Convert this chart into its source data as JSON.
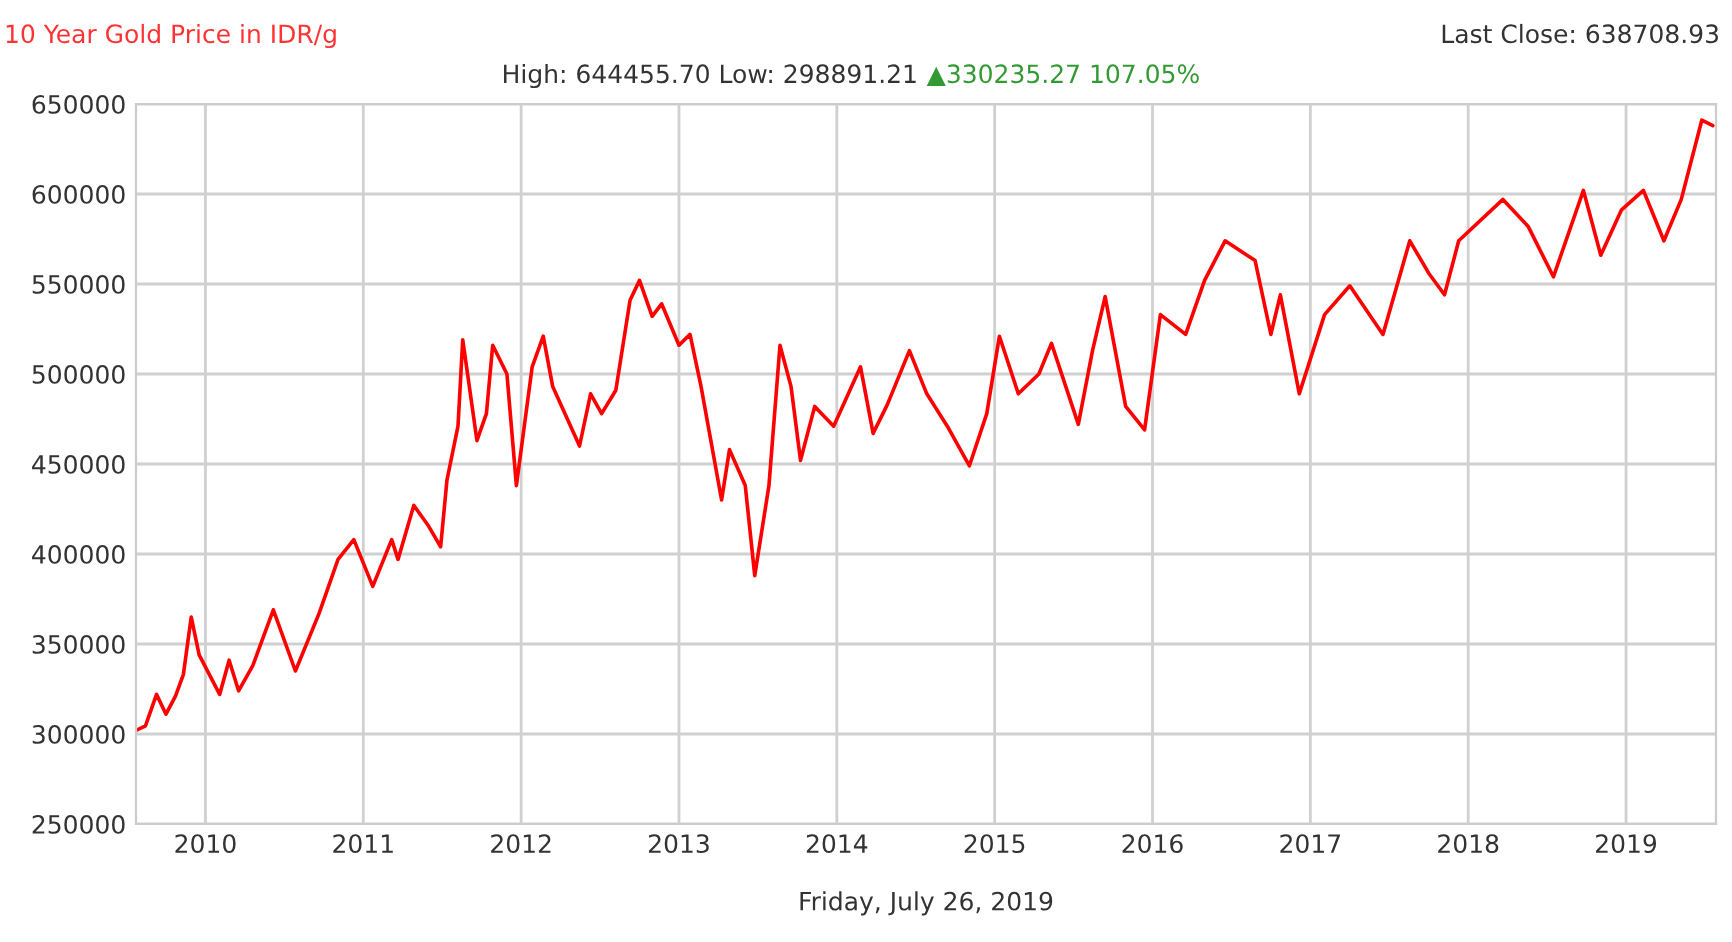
{
  "chart_data": {
    "type": "line",
    "title": "10 Year Gold Price in IDR/g",
    "subtitle": "High: 644455.70 Low: 298891.21",
    "annotations": [
      "▲330235.27 107.05%",
      "Last Close: 638708.93"
    ],
    "xlabel": "Friday, July 26, 2019",
    "xlim": [
      2009.56,
      2019.57
    ],
    "xticks": [
      {
        "value": 2010,
        "label": "2010"
      },
      {
        "value": 2011,
        "label": "2011"
      },
      {
        "value": 2012,
        "label": "2012"
      },
      {
        "value": 2013,
        "label": "2013"
      },
      {
        "value": 2014,
        "label": "2014"
      },
      {
        "value": 2015,
        "label": "2015"
      },
      {
        "value": 2016,
        "label": "2016"
      },
      {
        "value": 2017,
        "label": "2017"
      },
      {
        "value": 2018,
        "label": "2018"
      },
      {
        "value": 2019,
        "label": "2019"
      }
    ],
    "ylim": [
      250000,
      650000
    ],
    "yticks": [
      250000,
      300000,
      350000,
      400000,
      450000,
      500000,
      550000,
      600000,
      650000
    ],
    "grid": true,
    "legend": false,
    "series": [
      {
        "color": "#ff0000",
        "x": [
          2009.56,
          2009.62,
          2009.69,
          2009.75,
          2009.81,
          2009.86,
          2009.91,
          2009.96,
          2010.09,
          2010.15,
          2010.21,
          2010.3,
          2010.43,
          2010.57,
          2010.72,
          2010.84,
          2010.94,
          2011.06,
          2011.18,
          2011.22,
          2011.32,
          2011.41,
          2011.49,
          2011.53,
          2011.6,
          2011.63,
          2011.72,
          2011.78,
          2011.82,
          2011.91,
          2011.97,
          2012.07,
          2012.14,
          2012.2,
          2012.37,
          2012.44,
          2012.51,
          2012.6,
          2012.69,
          2012.75,
          2012.83,
          2012.89,
          2013.0,
          2013.07,
          2013.14,
          2013.27,
          2013.32,
          2013.42,
          2013.48,
          2013.57,
          2013.64,
          2013.71,
          2013.77,
          2013.86,
          2013.98,
          2014.15,
          2014.23,
          2014.32,
          2014.46,
          2014.57,
          2014.7,
          2014.84,
          2014.95,
          2015.03,
          2015.15,
          2015.28,
          2015.36,
          2015.53,
          2015.62,
          2015.7,
          2015.83,
          2015.95,
          2016.05,
          2016.21,
          2016.33,
          2016.46,
          2016.65,
          2016.75,
          2016.81,
          2016.93,
          2017.09,
          2017.25,
          2017.46,
          2017.63,
          2017.75,
          2017.85,
          2017.94,
          2018.22,
          2018.38,
          2018.54,
          2018.73,
          2018.84,
          2018.97,
          2019.11,
          2019.24,
          2019.35,
          2019.48,
          2019.55
        ],
        "values": [
          302000,
          304500,
          322000,
          311000,
          321000,
          333000,
          365000,
          344000,
          322000,
          341000,
          324000,
          338000,
          369000,
          335000,
          367000,
          397000,
          408000,
          382000,
          408000,
          397000,
          427000,
          416000,
          404000,
          441000,
          471000,
          519000,
          463000,
          478000,
          516000,
          500000,
          438000,
          504000,
          521000,
          493000,
          460000,
          489000,
          478000,
          491000,
          541000,
          552000,
          532000,
          539000,
          516000,
          522000,
          493000,
          430000,
          458000,
          438000,
          388000,
          438000,
          516000,
          493000,
          452000,
          482000,
          471000,
          504000,
          467000,
          483000,
          513000,
          489000,
          471000,
          449000,
          478000,
          521000,
          489000,
          500000,
          517000,
          472000,
          513000,
          543000,
          482000,
          469000,
          533000,
          522000,
          552000,
          574000,
          563000,
          522000,
          544000,
          489000,
          533000,
          549000,
          522000,
          574000,
          556000,
          544000,
          574000,
          597000,
          582000,
          554000,
          602000,
          566000,
          591000,
          602000,
          574000,
          597000,
          641000,
          638000
        ]
      }
    ]
  }
}
